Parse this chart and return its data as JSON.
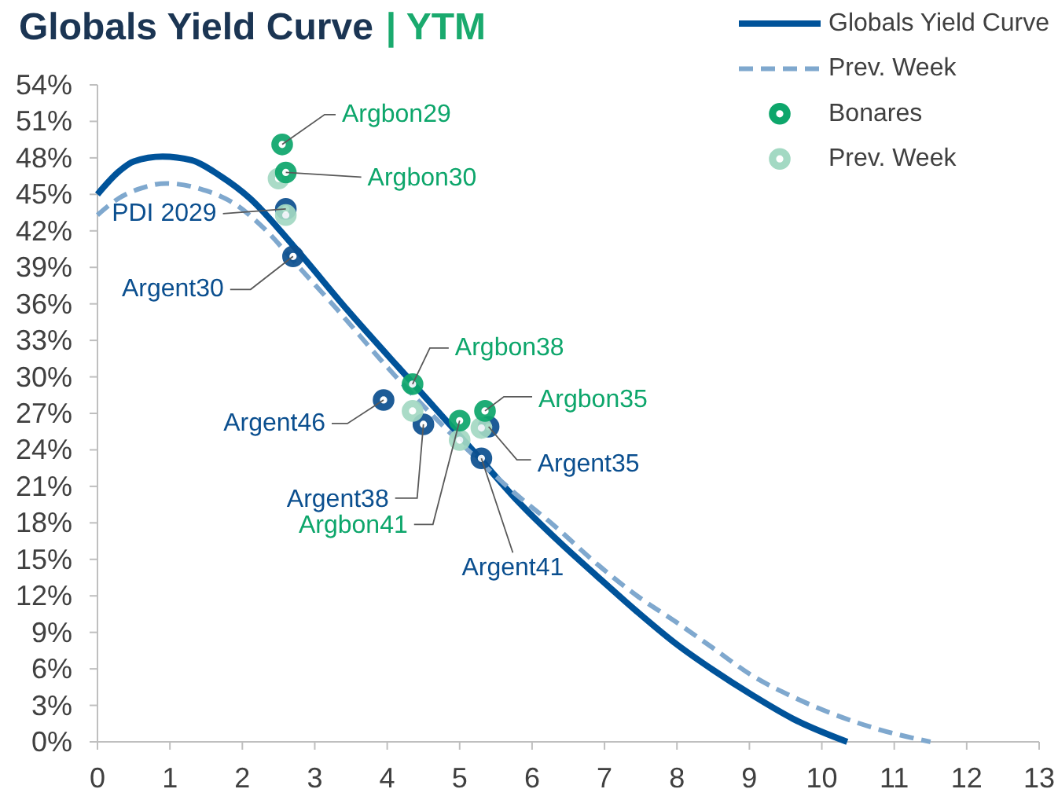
{
  "chart_data": {
    "type": "line",
    "title": "Globals Yield Curve",
    "subtitle": "| YTM",
    "xlim": [
      0,
      13
    ],
    "xticks": [
      0,
      1,
      2,
      3,
      4,
      5,
      6,
      7,
      8,
      9,
      10,
      11,
      12,
      13
    ],
    "ylim": [
      0,
      54
    ],
    "yticks": [
      {
        "value": 0,
        "label": "0%"
      },
      {
        "value": 3,
        "label": "3%"
      },
      {
        "value": 6,
        "label": "6%"
      },
      {
        "value": 9,
        "label": "9%"
      },
      {
        "value": 12,
        "label": "12%"
      },
      {
        "value": 15,
        "label": "15%"
      },
      {
        "value": 18,
        "label": "18%"
      },
      {
        "value": 21,
        "label": "21%"
      },
      {
        "value": 24,
        "label": "24%"
      },
      {
        "value": 27,
        "label": "27%"
      },
      {
        "value": 30,
        "label": "30%"
      },
      {
        "value": 33,
        "label": "33%"
      },
      {
        "value": 36,
        "label": "36%"
      },
      {
        "value": 39,
        "label": "39%"
      },
      {
        "value": 42,
        "label": "42%"
      },
      {
        "value": 45,
        "label": "45%"
      },
      {
        "value": 48,
        "label": "48%"
      },
      {
        "value": 51,
        "label": "51%"
      },
      {
        "value": 54,
        "label": "54%"
      }
    ],
    "legend": "top right",
    "marker": "circle",
    "series": [
      {
        "name": "Globals Yield Curve",
        "color": "#00539a",
        "line_style": "solid",
        "marker": "none",
        "x": [
          0,
          0.3,
          0.5,
          0.9,
          1.3,
          1.7,
          2.1,
          2.7,
          3.45,
          4.35,
          5.25,
          5.8,
          6.4,
          6.9,
          7.45,
          8,
          8.5,
          9.05,
          9.6,
          10.35
        ],
        "values": [
          45,
          46.9,
          47.7,
          48.1,
          47.8,
          46.5,
          44.7,
          40.8,
          35.5,
          29.5,
          23.5,
          19.8,
          16.3,
          13.6,
          10.7,
          8,
          5.9,
          3.8,
          1.9,
          0
        ]
      },
      {
        "name": "Prev. Week",
        "color": "#7fa8ce",
        "line_style": "dashed",
        "marker": "none",
        "x": [
          0,
          0.3,
          0.6,
          0.95,
          1.5,
          1.9,
          2.3,
          2.8,
          3.3,
          4,
          4.6,
          5.2,
          5.75,
          6.3,
          6.9,
          7.45,
          8,
          8.5,
          9.05,
          9.6,
          10.15,
          10.8,
          11.5
        ],
        "values": [
          43.3,
          44.7,
          45.5,
          45.9,
          45.3,
          44.2,
          42.2,
          38.9,
          35.6,
          30.8,
          27,
          23.5,
          20.5,
          17.8,
          14.6,
          12,
          9.8,
          7.7,
          5.4,
          3.7,
          2.3,
          1,
          0
        ]
      },
      {
        "name": "Bonares",
        "type": "scatter",
        "color": "#0da66b",
        "x": [
          2.55,
          2.6,
          4.35,
          5,
          5.35
        ],
        "values": [
          49.1,
          46.8,
          29.4,
          26.4,
          27.2
        ]
      },
      {
        "name": "Prev. Week",
        "type": "scatter",
        "color": "#a3d9c3",
        "x": [
          2.5,
          2.6,
          4.35,
          5,
          5.3
        ],
        "values": [
          46.3,
          43.3,
          27.2,
          24.8,
          25.8
        ]
      },
      {
        "type": "scatter",
        "color": "#0b4f8f",
        "x": [
          2.6,
          2.7,
          3.95,
          4.5,
          5.4,
          5.3
        ],
        "values": [
          43.8,
          39.9,
          28.1,
          26.1,
          25.9,
          23.3
        ]
      }
    ],
    "annotations": [
      {
        "text": "Argbon29",
        "x": 2.55,
        "y": 49.1
      },
      {
        "text": "Argbon30",
        "x": 2.6,
        "y": 46.8
      },
      {
        "text": "PDI 2029",
        "x": 2.6,
        "y": 43.8
      },
      {
        "text": "Argent30",
        "x": 2.7,
        "y": 39.9
      },
      {
        "text": "Argbon38",
        "x": 4.35,
        "y": 29.4
      },
      {
        "text": "Argent46",
        "x": 3.95,
        "y": 28.1
      },
      {
        "text": "Argbon35",
        "x": 5.35,
        "y": 27.2
      },
      {
        "text": "Argent35",
        "x": 5.4,
        "y": 25.9
      },
      {
        "text": "Argent38",
        "x": 4.5,
        "y": 26.1
      },
      {
        "text": "Argbon41",
        "x": 5,
        "y": 26.4
      },
      {
        "text": "Argent41",
        "x": 5.3,
        "y": 23.3
      }
    ]
  }
}
